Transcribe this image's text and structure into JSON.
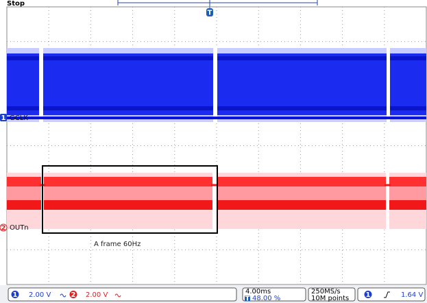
{
  "header": {
    "status": "Stop",
    "trigger_marker": "T"
  },
  "channels": [
    {
      "number": "1",
      "label": "GCLK"
    },
    {
      "number": "2",
      "label": "OUTn"
    }
  ],
  "annotation": "A frame 60Hz",
  "status_bar": {
    "ch1": {
      "number": "1",
      "scale": "2.00 V"
    },
    "ch2": {
      "number": "2",
      "scale": "2.00 V"
    },
    "timebase": "4.00ms",
    "trigger_position": "48.00 %",
    "sample_rate": "250MS/s",
    "record_length": "10M points",
    "trigger": {
      "source": "1",
      "level": "1.64 V"
    }
  }
}
